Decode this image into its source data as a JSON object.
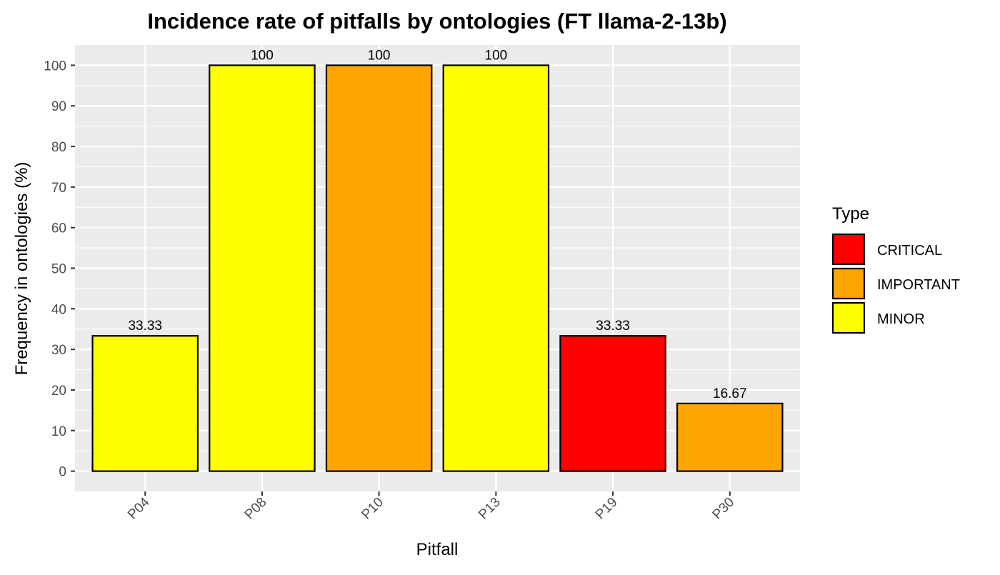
{
  "chart_data": {
    "type": "bar",
    "title": "Incidence rate of pitfalls by ontologies (FT llama-2-13b)",
    "xlabel": "Pitfall",
    "ylabel": "Frequency in ontologies (%)",
    "categories": [
      "P04",
      "P08",
      "P10",
      "P13",
      "P19",
      "P30"
    ],
    "values": [
      33.33,
      100,
      100,
      100,
      33.33,
      16.67
    ],
    "value_labels": [
      "33.33",
      "100",
      "100",
      "100",
      "33.33",
      "16.67"
    ],
    "types": [
      "MINOR",
      "MINOR",
      "IMPORTANT",
      "MINOR",
      "CRITICAL",
      "IMPORTANT"
    ],
    "ylim": [
      -5,
      105
    ],
    "yticks": [
      0,
      10,
      20,
      30,
      40,
      50,
      60,
      70,
      80,
      90,
      100
    ],
    "ytick_labels": [
      "0",
      "10",
      "20",
      "30",
      "40",
      "50",
      "60",
      "70",
      "80",
      "90",
      "100"
    ],
    "grid": true,
    "legend": {
      "title": "Type",
      "placement": "right",
      "entries": [
        {
          "name": "CRITICAL",
          "color": "#ff0000"
        },
        {
          "name": "IMPORTANT",
          "color": "#ffa500"
        },
        {
          "name": "MINOR",
          "color": "#ffff00"
        }
      ]
    },
    "colors": {
      "panel_background": "#ebebeb",
      "grid": "#ffffff",
      "bar_outline": "#000000"
    }
  }
}
